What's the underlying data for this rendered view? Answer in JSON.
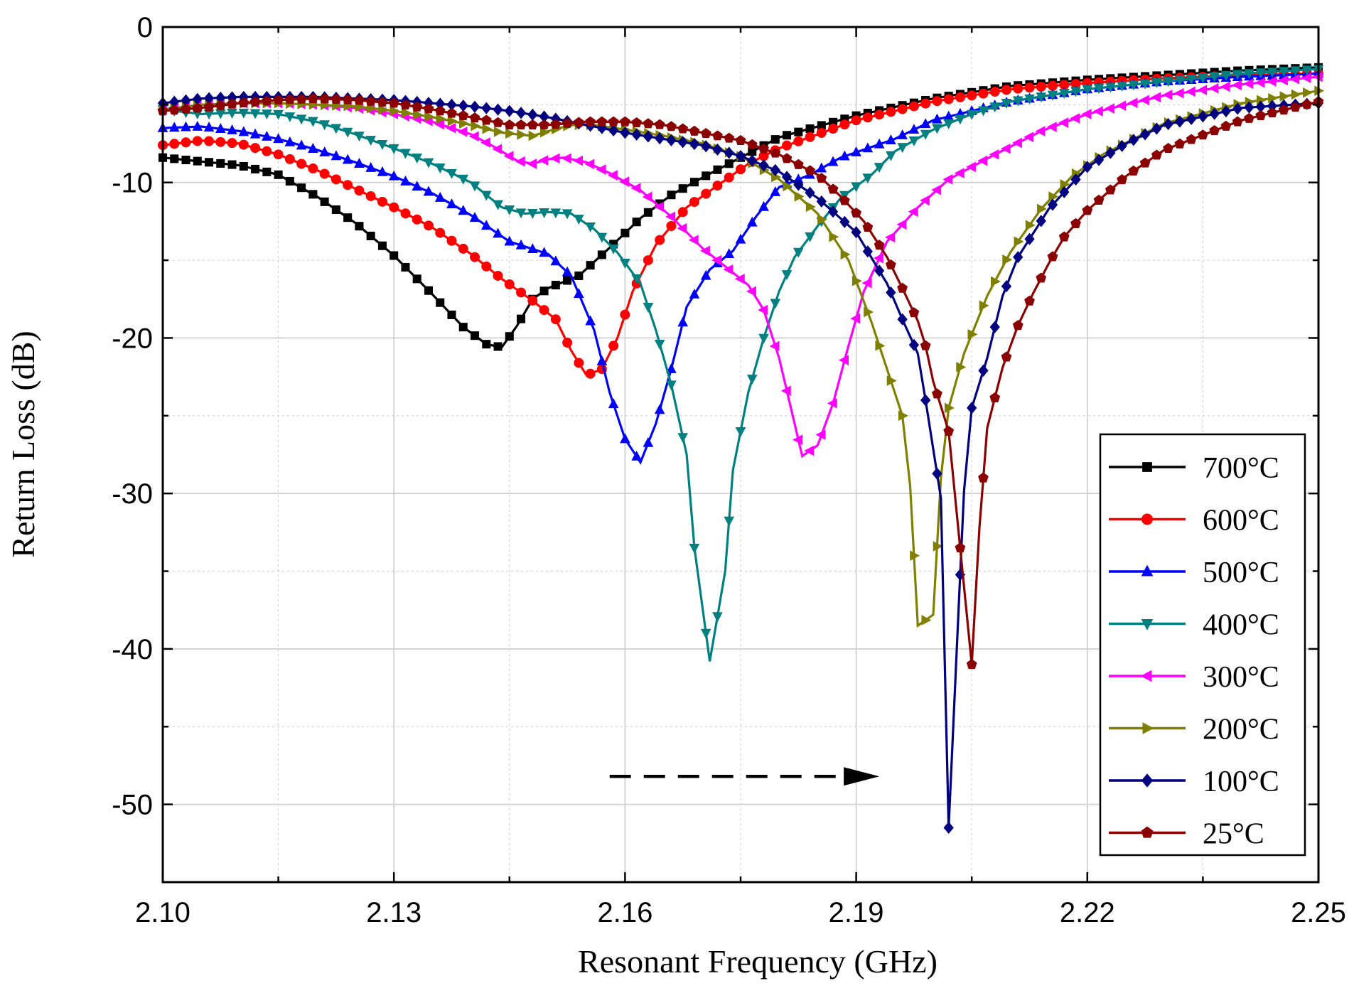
{
  "chart_data": {
    "type": "line",
    "title": "",
    "xlabel": "Resonant Frequency (GHz)",
    "ylabel": "Return Loss (dB)",
    "xlim": [
      2.1,
      2.25
    ],
    "ylim": [
      -55,
      0
    ],
    "xticks": [
      "2.10",
      "2.13",
      "2.16",
      "2.19",
      "2.22",
      "2.25"
    ],
    "xtick_values": [
      2.1,
      2.13,
      2.16,
      2.19,
      2.22,
      2.25
    ],
    "yticks": [
      "0",
      "-10",
      "-20",
      "-30",
      "-40",
      "-50"
    ],
    "ytick_values": [
      0,
      -10,
      -20,
      -30,
      -40,
      -50
    ],
    "grid": true,
    "legend_position": "bottom-right",
    "annotation": {
      "type": "dashed-arrow",
      "from": [
        2.158,
        -48.2
      ],
      "to": [
        2.193,
        -48.2
      ]
    },
    "series": [
      {
        "name": "700°C",
        "color": "#000000",
        "marker": "square",
        "points": [
          [
            2.1,
            -8.4
          ],
          [
            2.11,
            -8.9
          ],
          [
            2.115,
            -9.5
          ],
          [
            2.12,
            -10.9
          ],
          [
            2.125,
            -12.6
          ],
          [
            2.13,
            -14.7
          ],
          [
            2.135,
            -17.2
          ],
          [
            2.139,
            -19.3
          ],
          [
            2.142,
            -20.4
          ],
          [
            2.144,
            -20.6
          ],
          [
            2.146,
            -19.2
          ],
          [
            2.148,
            -17.5
          ],
          [
            2.15,
            -16.8
          ],
          [
            2.154,
            -16.0
          ],
          [
            2.158,
            -14.2
          ],
          [
            2.162,
            -12.3
          ],
          [
            2.166,
            -10.8
          ],
          [
            2.17,
            -9.7
          ],
          [
            2.175,
            -8.4
          ],
          [
            2.18,
            -7.1
          ],
          [
            2.19,
            -5.7
          ],
          [
            2.2,
            -4.6
          ],
          [
            2.21,
            -3.8
          ],
          [
            2.22,
            -3.4
          ],
          [
            2.23,
            -3.1
          ],
          [
            2.24,
            -2.8
          ],
          [
            2.25,
            -2.6
          ]
        ]
      },
      {
        "name": "600°C",
        "color": "#ff0000",
        "marker": "circle",
        "points": [
          [
            2.1,
            -7.6
          ],
          [
            2.105,
            -7.3
          ],
          [
            2.11,
            -7.5
          ],
          [
            2.115,
            -8.2
          ],
          [
            2.12,
            -9.2
          ],
          [
            2.125,
            -10.4
          ],
          [
            2.13,
            -11.6
          ],
          [
            2.135,
            -12.9
          ],
          [
            2.14,
            -14.6
          ],
          [
            2.144,
            -16.2
          ],
          [
            2.148,
            -17.6
          ],
          [
            2.151,
            -18.8
          ],
          [
            2.153,
            -20.8
          ],
          [
            2.155,
            -22.4
          ],
          [
            2.157,
            -22.0
          ],
          [
            2.159,
            -20.0
          ],
          [
            2.161,
            -17.0
          ],
          [
            2.164,
            -14.0
          ],
          [
            2.168,
            -11.6
          ],
          [
            2.172,
            -10.2
          ],
          [
            2.176,
            -8.8
          ],
          [
            2.18,
            -7.8
          ],
          [
            2.19,
            -6.0
          ],
          [
            2.2,
            -4.8
          ],
          [
            2.21,
            -4.0
          ],
          [
            2.22,
            -3.6
          ],
          [
            2.23,
            -3.3
          ],
          [
            2.24,
            -3.1
          ],
          [
            2.25,
            -3.0
          ]
        ]
      },
      {
        "name": "500°C",
        "color": "#0000ff",
        "marker": "triangle-up",
        "points": [
          [
            2.1,
            -6.5
          ],
          [
            2.105,
            -6.4
          ],
          [
            2.11,
            -6.7
          ],
          [
            2.115,
            -7.2
          ],
          [
            2.12,
            -7.9
          ],
          [
            2.125,
            -8.7
          ],
          [
            2.13,
            -9.6
          ],
          [
            2.135,
            -10.7
          ],
          [
            2.14,
            -12.1
          ],
          [
            2.145,
            -13.8
          ],
          [
            2.15,
            -14.6
          ],
          [
            2.153,
            -16.0
          ],
          [
            2.156,
            -19.5
          ],
          [
            2.158,
            -23.5
          ],
          [
            2.16,
            -26.5
          ],
          [
            2.162,
            -28.0
          ],
          [
            2.164,
            -25.5
          ],
          [
            2.166,
            -22.0
          ],
          [
            2.168,
            -18.0
          ],
          [
            2.171,
            -15.6
          ],
          [
            2.174,
            -14.4
          ],
          [
            2.177,
            -12.2
          ],
          [
            2.18,
            -10.3
          ],
          [
            2.184,
            -9.5
          ],
          [
            2.188,
            -8.4
          ],
          [
            2.195,
            -7.2
          ],
          [
            2.2,
            -6.0
          ],
          [
            2.21,
            -4.8
          ],
          [
            2.22,
            -4.0
          ],
          [
            2.23,
            -3.5
          ],
          [
            2.24,
            -3.2
          ],
          [
            2.25,
            -3.0
          ]
        ]
      },
      {
        "name": "400°C",
        "color": "#008080",
        "marker": "triangle-down",
        "points": [
          [
            2.1,
            -5.3
          ],
          [
            2.105,
            -5.6
          ],
          [
            2.11,
            -5.5
          ],
          [
            2.115,
            -5.6
          ],
          [
            2.12,
            -6.1
          ],
          [
            2.125,
            -6.9
          ],
          [
            2.13,
            -7.8
          ],
          [
            2.135,
            -8.8
          ],
          [
            2.14,
            -10.0
          ],
          [
            2.144,
            -11.6
          ],
          [
            2.147,
            -12.0
          ],
          [
            2.15,
            -11.9
          ],
          [
            2.153,
            -12.0
          ],
          [
            2.156,
            -13.0
          ],
          [
            2.159,
            -14.5
          ],
          [
            2.162,
            -16.5
          ],
          [
            2.164,
            -19.5
          ],
          [
            2.166,
            -23.0
          ],
          [
            2.168,
            -27.5
          ],
          [
            2.169,
            -33.5
          ],
          [
            2.171,
            -40.8
          ],
          [
            2.173,
            -35.0
          ],
          [
            2.174,
            -28.5
          ],
          [
            2.176,
            -23.5
          ],
          [
            2.178,
            -20.0
          ],
          [
            2.18,
            -17.0
          ],
          [
            2.182,
            -14.8
          ],
          [
            2.185,
            -12.8
          ],
          [
            2.188,
            -11.0
          ],
          [
            2.192,
            -9.5
          ],
          [
            2.195,
            -8.0
          ],
          [
            2.2,
            -6.6
          ],
          [
            2.205,
            -5.6
          ],
          [
            2.21,
            -4.8
          ],
          [
            2.22,
            -4.0
          ],
          [
            2.23,
            -3.5
          ],
          [
            2.24,
            -3.0
          ],
          [
            2.25,
            -2.7
          ]
        ]
      },
      {
        "name": "300°C",
        "color": "#ff00ff",
        "marker": "triangle-left",
        "points": [
          [
            2.1,
            -5.3
          ],
          [
            2.105,
            -5.0
          ],
          [
            2.11,
            -4.9
          ],
          [
            2.115,
            -4.9
          ],
          [
            2.12,
            -5.0
          ],
          [
            2.125,
            -5.2
          ],
          [
            2.13,
            -5.6
          ],
          [
            2.135,
            -6.1
          ],
          [
            2.14,
            -6.9
          ],
          [
            2.143,
            -7.7
          ],
          [
            2.146,
            -8.6
          ],
          [
            2.148,
            -8.8
          ],
          [
            2.15,
            -8.5
          ],
          [
            2.152,
            -8.4
          ],
          [
            2.155,
            -8.7
          ],
          [
            2.158,
            -9.4
          ],
          [
            2.162,
            -10.5
          ],
          [
            2.166,
            -12.2
          ],
          [
            2.17,
            -14.2
          ],
          [
            2.173,
            -15.4
          ],
          [
            2.176,
            -16.6
          ],
          [
            2.178,
            -18.2
          ],
          [
            2.18,
            -21.3
          ],
          [
            2.182,
            -25.5
          ],
          [
            2.183,
            -27.6
          ],
          [
            2.185,
            -26.9
          ],
          [
            2.187,
            -24.2
          ],
          [
            2.189,
            -20.5
          ],
          [
            2.191,
            -17.0
          ],
          [
            2.194,
            -13.8
          ],
          [
            2.198,
            -11.6
          ],
          [
            2.202,
            -9.8
          ],
          [
            2.208,
            -8.2
          ],
          [
            2.214,
            -6.7
          ],
          [
            2.22,
            -5.6
          ],
          [
            2.23,
            -4.4
          ],
          [
            2.24,
            -3.7
          ],
          [
            2.25,
            -3.2
          ]
        ]
      },
      {
        "name": "200°C",
        "color": "#808000",
        "marker": "triangle-right",
        "points": [
          [
            2.1,
            -5.3
          ],
          [
            2.105,
            -5.0
          ],
          [
            2.11,
            -4.9
          ],
          [
            2.115,
            -4.9
          ],
          [
            2.12,
            -5.0
          ],
          [
            2.125,
            -5.1
          ],
          [
            2.13,
            -5.4
          ],
          [
            2.135,
            -5.8
          ],
          [
            2.14,
            -6.3
          ],
          [
            2.144,
            -6.8
          ],
          [
            2.148,
            -7.0
          ],
          [
            2.15,
            -6.7
          ],
          [
            2.153,
            -6.3
          ],
          [
            2.156,
            -6.3
          ],
          [
            2.16,
            -6.6
          ],
          [
            2.165,
            -7.0
          ],
          [
            2.17,
            -7.5
          ],
          [
            2.175,
            -8.3
          ],
          [
            2.18,
            -9.8
          ],
          [
            2.185,
            -12.0
          ],
          [
            2.189,
            -15.0
          ],
          [
            2.192,
            -19.0
          ],
          [
            2.194,
            -22.0
          ],
          [
            2.196,
            -25.0
          ],
          [
            2.197,
            -29.5
          ],
          [
            2.198,
            -38.5
          ],
          [
            2.2,
            -37.8
          ],
          [
            2.201,
            -29.0
          ],
          [
            2.202,
            -24.5
          ],
          [
            2.204,
            -21.0
          ],
          [
            2.207,
            -17.3
          ],
          [
            2.21,
            -14.5
          ],
          [
            2.214,
            -11.7
          ],
          [
            2.218,
            -9.6
          ],
          [
            2.222,
            -8.2
          ],
          [
            2.23,
            -6.2
          ],
          [
            2.24,
            -4.9
          ],
          [
            2.25,
            -4.1
          ]
        ]
      },
      {
        "name": "100°C",
        "color": "#000080",
        "marker": "diamond",
        "points": [
          [
            2.1,
            -4.9
          ],
          [
            2.105,
            -4.6
          ],
          [
            2.11,
            -4.5
          ],
          [
            2.115,
            -4.5
          ],
          [
            2.12,
            -4.5
          ],
          [
            2.125,
            -4.6
          ],
          [
            2.13,
            -4.7
          ],
          [
            2.135,
            -4.9
          ],
          [
            2.14,
            -5.1
          ],
          [
            2.145,
            -5.4
          ],
          [
            2.15,
            -5.8
          ],
          [
            2.155,
            -6.3
          ],
          [
            2.16,
            -6.8
          ],
          [
            2.165,
            -7.2
          ],
          [
            2.17,
            -7.6
          ],
          [
            2.175,
            -8.3
          ],
          [
            2.18,
            -9.3
          ],
          [
            2.185,
            -11.0
          ],
          [
            2.19,
            -13.2
          ],
          [
            2.194,
            -16.5
          ],
          [
            2.196,
            -18.8
          ],
          [
            2.198,
            -21.0
          ],
          [
            2.199,
            -24.0
          ],
          [
            2.201,
            -30.3
          ],
          [
            2.202,
            -51.5
          ],
          [
            2.204,
            -29.8
          ],
          [
            2.205,
            -24.5
          ],
          [
            2.207,
            -21.3
          ],
          [
            2.209,
            -17.3
          ],
          [
            2.211,
            -14.8
          ],
          [
            2.215,
            -11.7
          ],
          [
            2.22,
            -9.0
          ],
          [
            2.225,
            -7.5
          ],
          [
            2.23,
            -6.3
          ],
          [
            2.24,
            -5.2
          ],
          [
            2.25,
            -4.9
          ]
        ]
      },
      {
        "name": "25°C",
        "color": "#8b0000",
        "marker": "pentagon",
        "points": [
          [
            2.1,
            -5.4
          ],
          [
            2.105,
            -5.2
          ],
          [
            2.11,
            -4.9
          ],
          [
            2.115,
            -4.7
          ],
          [
            2.12,
            -4.6
          ],
          [
            2.125,
            -4.7
          ],
          [
            2.13,
            -4.9
          ],
          [
            2.135,
            -5.3
          ],
          [
            2.14,
            -5.8
          ],
          [
            2.145,
            -6.3
          ],
          [
            2.15,
            -6.3
          ],
          [
            2.155,
            -6.1
          ],
          [
            2.16,
            -6.1
          ],
          [
            2.165,
            -6.3
          ],
          [
            2.17,
            -6.8
          ],
          [
            2.175,
            -7.3
          ],
          [
            2.18,
            -8.2
          ],
          [
            2.185,
            -9.5
          ],
          [
            2.188,
            -10.9
          ],
          [
            2.191,
            -12.5
          ],
          [
            2.194,
            -14.8
          ],
          [
            2.196,
            -16.8
          ],
          [
            2.198,
            -18.9
          ],
          [
            2.199,
            -20.5
          ],
          [
            2.2,
            -22.8
          ],
          [
            2.202,
            -26.0
          ],
          [
            2.203,
            -31.0
          ],
          [
            2.205,
            -41.0
          ],
          [
            2.206,
            -32.2
          ],
          [
            2.207,
            -25.8
          ],
          [
            2.209,
            -21.9
          ],
          [
            2.211,
            -19.2
          ],
          [
            2.213,
            -17.1
          ],
          [
            2.215,
            -15.2
          ],
          [
            2.217,
            -13.5
          ],
          [
            2.22,
            -11.8
          ],
          [
            2.225,
            -9.6
          ],
          [
            2.23,
            -7.9
          ],
          [
            2.24,
            -6.0
          ],
          [
            2.25,
            -4.8
          ]
        ]
      }
    ]
  }
}
